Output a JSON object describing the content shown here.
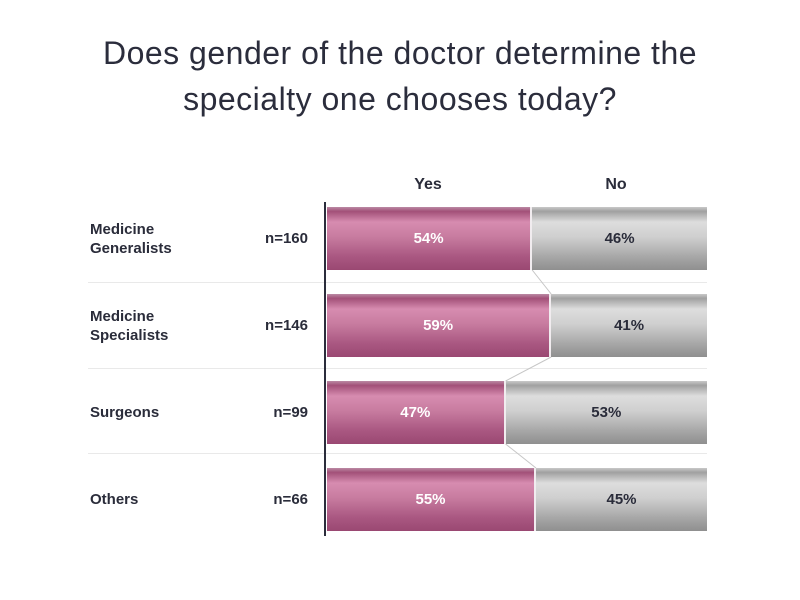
{
  "slide": {
    "title_lines": [
      "Does gender of the doctor determine the",
      "specialty one chooses today?"
    ]
  },
  "chart_data": {
    "type": "bar",
    "subtype": "horizontal-100%-stacked",
    "title": "Does gender of the doctor determine the specialty one chooses today?",
    "column_headers": [
      "Yes",
      "No"
    ],
    "categories": [
      "Medicine Generalists",
      "Medicine Specialists",
      "Surgeons",
      "Others"
    ],
    "sample_sizes": [
      "n=160",
      "n=146",
      "n=99",
      "n=66"
    ],
    "series": [
      {
        "name": "Yes",
        "values": [
          54,
          59,
          47,
          55
        ],
        "color": "#c4688f",
        "label_color": "#ffffff"
      },
      {
        "name": "No",
        "values": [
          46,
          41,
          53,
          45
        ],
        "color": "#b5b5b5",
        "label_color": "#2a2c3a"
      }
    ],
    "value_suffix": "%",
    "xlim": [
      0,
      100
    ],
    "legend_position": "column-headers-above-chart",
    "grid": "row-separator-lines"
  },
  "colors": {
    "background": "#ffffff",
    "title_text": "#2b2d3c",
    "axis_line": "#2b2d3c",
    "separator_line": "#e9e9e9",
    "connector_line": "#c6c6c6",
    "yes_gradient": [
      "#bb8aa4",
      "#a25078",
      "#d78cb0",
      "#c77b9f",
      "#aa5882",
      "#9a4872"
    ],
    "no_gradient": [
      "#c9c9c9",
      "#a0a0a0",
      "#dddddd",
      "#cfcfcf",
      "#a8a8a8",
      "#8f8f8f"
    ]
  }
}
